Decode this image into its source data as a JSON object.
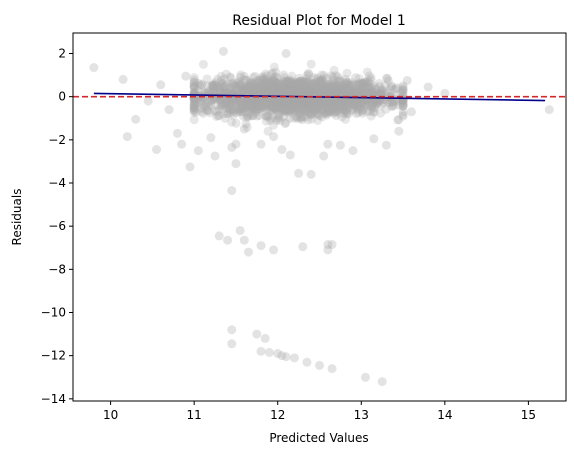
{
  "chart_data": {
    "type": "scatter",
    "title": "Residual Plot for Model 1",
    "xlabel": "Predicted Values",
    "ylabel": "Residuals",
    "xlim": [
      9.55,
      15.45
    ],
    "ylim": [
      -14.1,
      2.95
    ],
    "x_ticks": [
      10,
      11,
      12,
      13,
      14,
      15
    ],
    "y_ticks": [
      2,
      0,
      -2,
      -4,
      -6,
      -8,
      -10,
      -12,
      -14
    ],
    "grid": false,
    "colors": {
      "points": "#a9a9a9",
      "zero_line": "#d62728",
      "trend_line": "#00008b",
      "axes": "#000000"
    },
    "zero_line": {
      "y": 0,
      "style": "dashed"
    },
    "trend_line": {
      "x": [
        9.8,
        15.2
      ],
      "y": [
        0.15,
        -0.18
      ]
    },
    "main_cloud": {
      "x_center": 12.2,
      "x_sd": 0.55,
      "y_sd": 0.42,
      "count": 2300,
      "x_range": [
        11.0,
        13.5
      ]
    },
    "outliers": [
      [
        9.8,
        1.35
      ],
      [
        10.15,
        0.8
      ],
      [
        10.45,
        -0.2
      ],
      [
        10.55,
        -2.45
      ],
      [
        10.2,
        -1.85
      ],
      [
        10.3,
        -1.05
      ],
      [
        10.6,
        0.55
      ],
      [
        10.7,
        -0.6
      ],
      [
        10.8,
        -1.7
      ],
      [
        10.85,
        -2.2
      ],
      [
        10.95,
        -3.25
      ],
      [
        10.9,
        0.95
      ],
      [
        11.05,
        -2.5
      ],
      [
        11.2,
        -1.9
      ],
      [
        11.35,
        2.1
      ],
      [
        11.45,
        -2.35
      ],
      [
        11.5,
        -3.1
      ],
      [
        11.5,
        -2.2
      ],
      [
        11.6,
        -1.5
      ],
      [
        11.8,
        -2.2
      ],
      [
        11.95,
        -1.85
      ],
      [
        12.05,
        -2.45
      ],
      [
        12.15,
        -2.7
      ],
      [
        12.25,
        -3.55
      ],
      [
        12.4,
        -3.6
      ],
      [
        12.55,
        -2.75
      ],
      [
        12.6,
        -2.2
      ],
      [
        12.75,
        -2.25
      ],
      [
        13.15,
        -1.95
      ],
      [
        13.3,
        -2.25
      ],
      [
        13.45,
        -1.6
      ],
      [
        13.55,
        0.75
      ],
      [
        13.6,
        -0.7
      ],
      [
        13.8,
        0.45
      ],
      [
        14.0,
        0.15
      ],
      [
        15.25,
        -0.6
      ],
      [
        12.9,
        -2.5
      ],
      [
        12.1,
        2.0
      ],
      [
        11.25,
        -2.75
      ],
      [
        11.45,
        -4.35
      ],
      [
        11.3,
        -6.45
      ],
      [
        11.4,
        -6.65
      ],
      [
        11.55,
        -6.2
      ],
      [
        11.6,
        -6.65
      ],
      [
        11.65,
        -7.2
      ],
      [
        11.8,
        -6.9
      ],
      [
        11.95,
        -7.1
      ],
      [
        12.3,
        -6.95
      ],
      [
        12.6,
        -6.85
      ],
      [
        12.6,
        -7.1
      ],
      [
        12.65,
        -6.85
      ],
      [
        11.45,
        -10.8
      ],
      [
        11.45,
        -11.45
      ],
      [
        11.75,
        -11.0
      ],
      [
        11.8,
        -11.8
      ],
      [
        11.85,
        -11.2
      ],
      [
        11.9,
        -11.85
      ],
      [
        12.0,
        -11.9
      ],
      [
        12.05,
        -12.0
      ],
      [
        12.1,
        -12.05
      ],
      [
        12.2,
        -12.1
      ],
      [
        12.35,
        -12.3
      ],
      [
        12.5,
        -12.45
      ],
      [
        12.65,
        -12.6
      ],
      [
        13.05,
        -13.0
      ],
      [
        13.25,
        -13.2
      ]
    ]
  }
}
